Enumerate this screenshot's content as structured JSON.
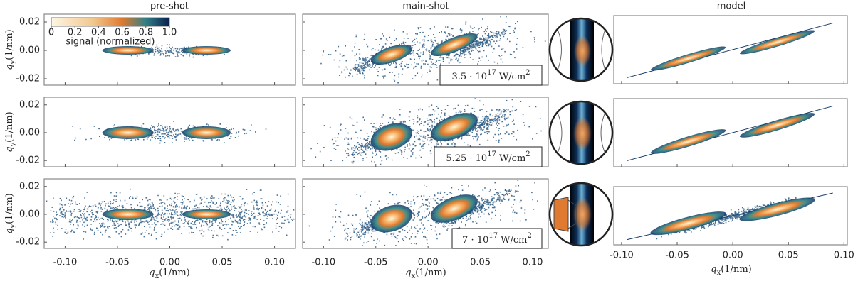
{
  "columns": [
    {
      "title": "pre-shot",
      "xlim": [
        -0.12,
        0.12
      ]
    },
    {
      "title": "main-shot",
      "xlim": [
        -0.12,
        0.115
      ]
    },
    {
      "title": "model",
      "xlim": [
        -0.107,
        0.103
      ]
    }
  ],
  "xticks": [
    {
      "value": -0.1,
      "label": "-0.10"
    },
    {
      "value": -0.05,
      "label": "-0.05"
    },
    {
      "value": 0,
      "label": "0.00"
    },
    {
      "value": 0.05,
      "label": "0.05"
    },
    {
      "value": 0.1,
      "label": "0.10"
    }
  ],
  "yticks": [
    {
      "value": 0.02,
      "label": "0.02"
    },
    {
      "value": 0,
      "label": "0.00"
    },
    {
      "value": -0.02,
      "label": "-0.02"
    }
  ],
  "ylim": [
    -0.0245,
    0.0255
  ],
  "xlabel": {
    "symbol": "q",
    "sub": "x",
    "unit": "(1/nm)"
  },
  "ylabel": {
    "symbol": "q",
    "sub": "y",
    "unit": "(1/nm)"
  },
  "colorbar": {
    "label": "signal (normalized)",
    "lim": [
      0,
      1
    ],
    "ticks": [
      0,
      0.2,
      0.4,
      0.6,
      0.8,
      {
        "value": 1,
        "label": "1.0"
      }
    ]
  },
  "intensities": [
    {
      "mantissa": "3.5 · 10",
      "exp": "17",
      "unit": "W/cm",
      "unit_exp": "2"
    },
    {
      "mantissa": "5.25 · 10",
      "exp": "17",
      "unit": "W/cm",
      "unit_exp": "2"
    },
    {
      "mantissa": "7 · 10",
      "exp": "17",
      "unit": "W/cm",
      "unit_exp": "2"
    }
  ]
}
